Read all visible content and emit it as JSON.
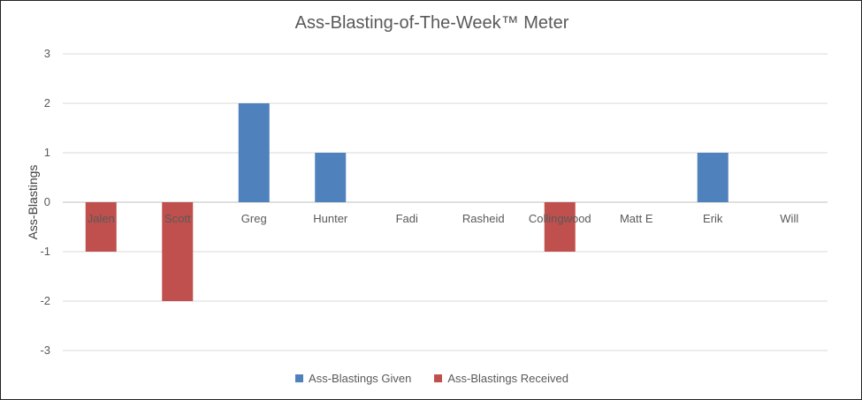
{
  "chart_data": {
    "type": "bar",
    "title": "Ass-Blasting-of-The-Week™ Meter",
    "ylabel": "Ass-Blastings",
    "xlabel": "",
    "categories": [
      "Jalen",
      "Scott",
      "Greg",
      "Hunter",
      "Fadi",
      "Rasheid",
      "Collingwood",
      "Matt E",
      "Erik",
      "Will"
    ],
    "series": [
      {
        "name": "Ass-Blastings Given",
        "color": "#4F81BD",
        "values": [
          0,
          0,
          2,
          1,
          0,
          0,
          0,
          0,
          1,
          0
        ]
      },
      {
        "name": "Ass-Blastings Received",
        "color": "#C0504D",
        "values": [
          -1,
          -2,
          0,
          0,
          0,
          0,
          -1,
          0,
          0,
          0
        ]
      }
    ],
    "ylim": [
      -3,
      3
    ],
    "yticks": [
      3,
      2,
      1,
      0,
      -1,
      -2,
      -3
    ],
    "grid": true,
    "legend_position": "bottom"
  }
}
